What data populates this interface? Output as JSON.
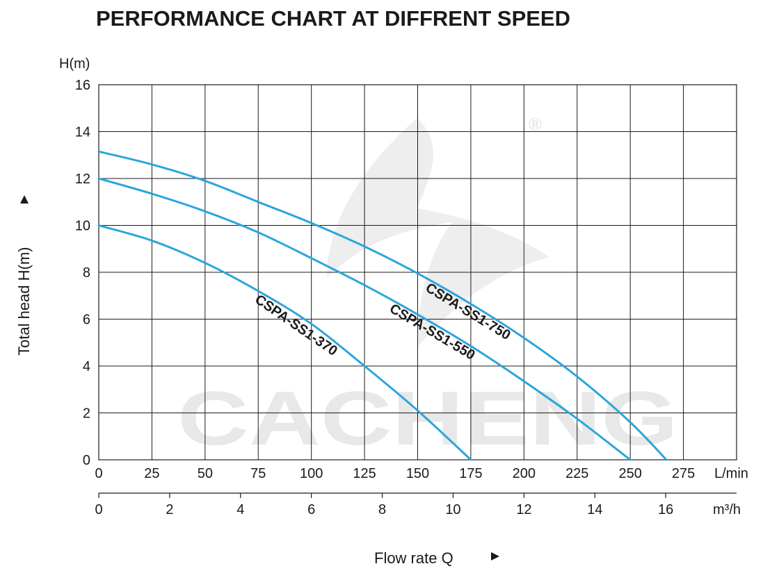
{
  "chart_data": {
    "type": "line",
    "title": "PERFORMANCE CHART AT DIFFRENT SPEED",
    "ylabel": "Total  head H(m)",
    "yunit": "H(m)",
    "xlabel": "Flow rate  Q",
    "x_unit_primary": "L/min",
    "x_unit_secondary": "m³/h",
    "xlim": [
      0,
      300
    ],
    "ylim": [
      0,
      16
    ],
    "x_ticks": [
      0,
      25,
      50,
      75,
      100,
      125,
      150,
      175,
      200,
      225,
      250,
      275
    ],
    "x_ticks_secondary": [
      0,
      2,
      4,
      6,
      8,
      10,
      12,
      14,
      16
    ],
    "y_ticks": [
      0,
      2,
      4,
      6,
      8,
      10,
      12,
      14,
      16
    ],
    "grid": true,
    "legend": "none",
    "series_color": "#2aa6dc",
    "watermark": "CACHENG",
    "series": [
      {
        "name": "CSPA-SS1-370",
        "x": [
          0,
          25,
          50,
          75,
          100,
          125,
          150,
          175
        ],
        "y": [
          10,
          9.35,
          8.4,
          7.2,
          5.8,
          4.0,
          2.1,
          0
        ]
      },
      {
        "name": "CSPA-SS1-550",
        "x": [
          0,
          25,
          50,
          75,
          100,
          125,
          150,
          175,
          200,
          225,
          250
        ],
        "y": [
          12,
          11.35,
          10.6,
          9.7,
          8.6,
          7.45,
          6.2,
          4.85,
          3.35,
          1.75,
          0
        ]
      },
      {
        "name": "CSPA-SS1-750",
        "x": [
          0,
          25,
          50,
          75,
          100,
          125,
          150,
          175,
          200,
          225,
          250,
          267
        ],
        "y": [
          13.15,
          12.6,
          11.9,
          11.0,
          10.1,
          9.1,
          7.95,
          6.65,
          5.2,
          3.55,
          1.6,
          0
        ]
      }
    ]
  }
}
